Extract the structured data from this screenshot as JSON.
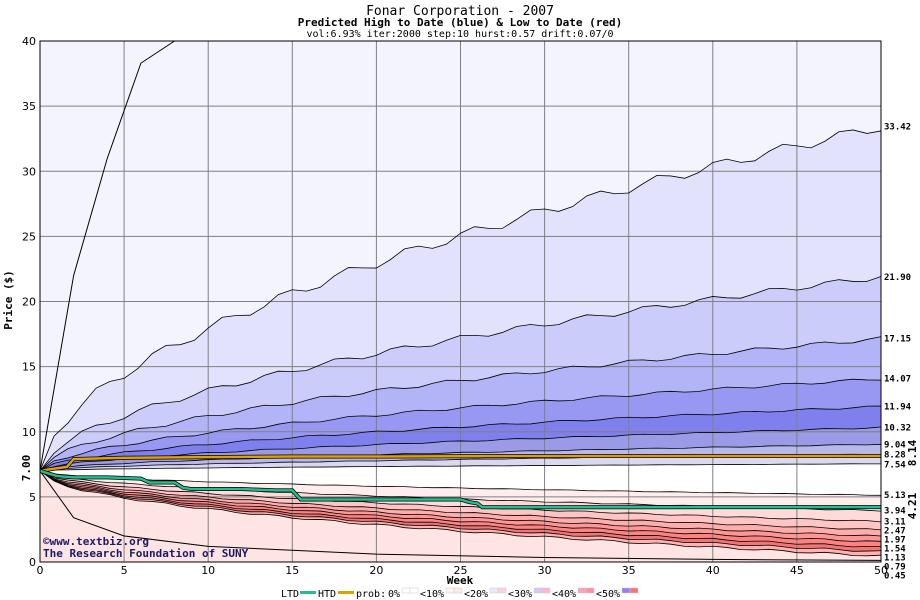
{
  "chart_data": {
    "type": "area",
    "title": "Fonar Corporation - 2007",
    "subtitle": "Predicted High to Date (blue) &  Low to Date (red)",
    "params": "vol:6.93% iter:2000 step:10 hurst:0.57 drift:0.07/0",
    "xlabel": "Week",
    "ylabel": "Price ($)",
    "xlim": [
      0,
      50
    ],
    "ylim": [
      0,
      40
    ],
    "x_ticks": [
      "0",
      "5",
      "10",
      "15",
      "20",
      "25",
      "30",
      "35",
      "40",
      "45",
      "50"
    ],
    "y_ticks": [
      "0",
      "5",
      "10",
      "15",
      "20",
      "25",
      "30",
      "35",
      "40"
    ],
    "grid": true,
    "start_price": 7.0,
    "start_label": "7.00",
    "high_labels": [
      "33.42",
      "21.90",
      "17.15",
      "14.07",
      "11.94",
      "10.32",
      "9.04",
      "8.28",
      "7.54"
    ],
    "high_end_values": [
      33.42,
      21.9,
      17.15,
      14.07,
      11.94,
      10.32,
      9.04,
      8.28,
      7.54
    ],
    "low_labels": [
      "5.13",
      "3.94",
      "3.11",
      "2.47",
      "1.97",
      "1.54",
      "1.13",
      "0.79",
      "0.45"
    ],
    "low_end_values": [
      5.13,
      3.94,
      3.11,
      2.47,
      1.97,
      1.54,
      1.13,
      0.79,
      0.45
    ],
    "outer_high_curve": {
      "x": [
        0,
        2,
        4,
        6,
        8
      ],
      "y": [
        7,
        22,
        31,
        38.3,
        40
      ]
    },
    "outer_low_curve": {
      "x": [
        0,
        2,
        5,
        10,
        20,
        30,
        40,
        50
      ],
      "y": [
        7,
        3.4,
        2.0,
        1.2,
        0.6,
        0.35,
        0.2,
        0.12
      ]
    },
    "band_fill_colors": [
      "#f4f4ff",
      "#e2e2fd",
      "#ccccfb",
      "#b3b3f8",
      "#9898f2",
      "#7f7fee",
      "#9a9ae6",
      "#b8b8ea",
      "#d8d8f0",
      "#ffffff",
      "#ffecec",
      "#ffdada",
      "#ffc4c4",
      "#ffacac",
      "#ff9696",
      "#ff8282",
      "#f07676",
      "#ffb0b0",
      "#ffe4e4"
    ],
    "series": [
      {
        "name": "HTD",
        "color": "#e0a000",
        "x": [
          0,
          1,
          1.6,
          2,
          5,
          10,
          15,
          20,
          25,
          26,
          26.5,
          30,
          35,
          40,
          45,
          50
        ],
        "y": [
          7,
          7.2,
          7.3,
          7.9,
          8.0,
          8.05,
          8.1,
          8.1,
          8.12,
          8.12,
          8.14,
          8.14,
          8.14,
          8.14,
          8.14,
          8.14
        ]
      },
      {
        "name": "LTD",
        "color": "#20c090",
        "x": [
          0,
          1,
          2,
          4,
          6,
          6.5,
          8,
          8.5,
          9,
          10,
          12,
          14,
          15,
          15.5,
          20,
          25,
          25.5,
          26,
          26.3,
          30,
          40,
          50
        ],
        "y": [
          7,
          6.6,
          6.5,
          6.5,
          6.4,
          6.1,
          6.1,
          5.7,
          5.6,
          5.6,
          5.6,
          5.5,
          5.5,
          4.8,
          4.8,
          4.8,
          4.6,
          4.5,
          4.2,
          4.2,
          4.21,
          4.21
        ]
      }
    ],
    "htd_final_label": "8.14",
    "ltd_final_label": "4.21"
  },
  "watermark": {
    "copyright_symbol": "©",
    "site": "www.textbiz.org",
    "org": "The Research Foundation of SUNY"
  },
  "legend": {
    "ltd": "LTD",
    "htd": "HTD",
    "prob_prefix": "prob:",
    "probs": [
      "0%",
      "<10%",
      "<20%",
      "<30%",
      "<40%",
      "<50%"
    ],
    "swatches": [
      "#ffffff",
      "#fff4f4",
      "#e8e8ff",
      "#d0c8ff",
      "#ff9fbf",
      "#9a78ff"
    ],
    "swatches_low": [
      "#ffffff",
      "#ffe8e8",
      "#ffd0e0",
      "#ffb8c8",
      "#ff8fa0",
      "#ff7070"
    ]
  },
  "colors": {
    "high_color": "#0000c0",
    "low_color": "#c00000",
    "grid": "#808080"
  }
}
